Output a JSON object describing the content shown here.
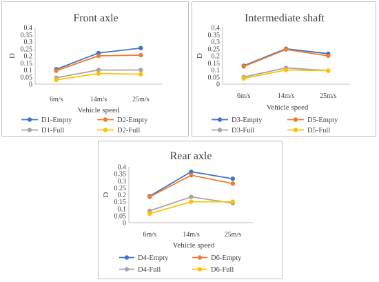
{
  "chart_data": [
    {
      "type": "line",
      "title": "Front axle",
      "xlabel": "Vehicle speed",
      "ylabel": "D",
      "categories": [
        "6m/s",
        "14m/s",
        "25m/s"
      ],
      "ylim": [
        0,
        0.4
      ],
      "yticks": [
        "0",
        "0.05",
        "0.1",
        "0.15",
        "0.2",
        "0.25",
        "0.3",
        "0.35",
        "0.4"
      ],
      "grid": false,
      "legend": "bottom",
      "series": [
        {
          "name": "D1-Empty",
          "color": "#4472c4",
          "values": [
            0.105,
            0.22,
            0.255
          ]
        },
        {
          "name": "D2-Empty",
          "color": "#ed7d31",
          "values": [
            0.095,
            0.2,
            0.205
          ]
        },
        {
          "name": "D1-Full",
          "color": "#a5a5a5",
          "values": [
            0.045,
            0.1,
            0.1
          ]
        },
        {
          "name": "D2-Full",
          "color": "#ffc000",
          "values": [
            0.03,
            0.075,
            0.07
          ]
        }
      ]
    },
    {
      "type": "line",
      "title": "Intermediate shaft",
      "xlabel": "Vehicle speed",
      "ylabel": "D",
      "categories": [
        "6m/s",
        "14m/s",
        "25m/s"
      ],
      "ylim": [
        0,
        0.4
      ],
      "yticks": [
        "0",
        "0.05",
        "0.1",
        "0.15",
        "0.2",
        "0.25",
        "0.3",
        "0.35",
        "0.4"
      ],
      "grid": false,
      "legend": "bottom",
      "series": [
        {
          "name": "D3-Empty",
          "color": "#4472c4",
          "values": [
            0.13,
            0.25,
            0.215
          ]
        },
        {
          "name": "D5-Empty",
          "color": "#ed7d31",
          "values": [
            0.125,
            0.245,
            0.2
          ]
        },
        {
          "name": "D3-Full",
          "color": "#a5a5a5",
          "values": [
            0.05,
            0.115,
            0.095
          ]
        },
        {
          "name": "D5-Full",
          "color": "#ffc000",
          "values": [
            0.04,
            0.1,
            0.095
          ]
        }
      ]
    },
    {
      "type": "line",
      "title": "Rear axle",
      "xlabel": "Vehicle speed",
      "ylabel": "D",
      "categories": [
        "6m/s",
        "14m/s",
        "25m/s"
      ],
      "ylim": [
        0,
        0.4
      ],
      "yticks": [
        "0",
        "0.05",
        "0.1",
        "0.15",
        "0.2",
        "0.25",
        "0.3",
        "0.35",
        "0.4"
      ],
      "grid": false,
      "legend": "bottom",
      "series": [
        {
          "name": "D4-Empty",
          "color": "#4472c4",
          "values": [
            0.19,
            0.365,
            0.315
          ]
        },
        {
          "name": "D6-Empty",
          "color": "#ed7d31",
          "values": [
            0.185,
            0.34,
            0.28
          ]
        },
        {
          "name": "D4-Full",
          "color": "#a5a5a5",
          "values": [
            0.085,
            0.185,
            0.14
          ]
        },
        {
          "name": "D6-Full",
          "color": "#ffc000",
          "values": [
            0.065,
            0.15,
            0.15
          ]
        }
      ]
    }
  ]
}
